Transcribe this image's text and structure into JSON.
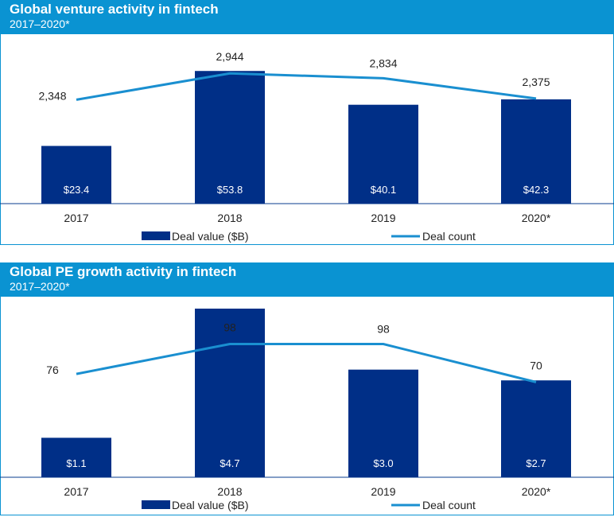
{
  "chart_data": [
    {
      "type": "bar+line",
      "title": "Global venture activity in fintech",
      "subtitle": "2017–2020*",
      "categories": [
        "2017",
        "2018",
        "2019",
        "2020*"
      ],
      "series": [
        {
          "name": "Deal value ($B)",
          "type": "bar",
          "values": [
            23.4,
            53.8,
            40.1,
            42.3
          ],
          "labels": [
            "$23.4",
            "$53.8",
            "$40.1",
            "$42.3"
          ]
        },
        {
          "name": "Deal count",
          "type": "line",
          "values": [
            2348,
            2944,
            2834,
            2375
          ],
          "labels": [
            "2,348",
            "2,944",
            "2,834",
            "2,375"
          ]
        }
      ],
      "bar_ylim": [
        0,
        60
      ],
      "line_ylim": [
        0,
        3200
      ],
      "legend": "bottom",
      "colors": {
        "bar": "#002f87",
        "line": "#1a8fd0",
        "header": "#0a93d2"
      }
    },
    {
      "type": "bar+line",
      "title": "Global PE growth activity in fintech",
      "subtitle": "2017–2020*",
      "categories": [
        "2017",
        "2018",
        "2019",
        "2020*"
      ],
      "series": [
        {
          "name": "Deal value ($B)",
          "type": "bar",
          "values": [
            1.1,
            4.7,
            3.0,
            2.7
          ],
          "labels": [
            "$1.1",
            "$4.7",
            "$3.0",
            "$2.7"
          ]
        },
        {
          "name": "Deal count",
          "type": "line",
          "values": [
            76,
            98,
            98,
            70
          ],
          "labels": [
            "76",
            "98",
            "98",
            "70"
          ]
        }
      ],
      "bar_ylim": [
        0,
        4.7
      ],
      "line_ylim": [
        0,
        110
      ],
      "legend": "bottom",
      "colors": {
        "bar": "#002f87",
        "line": "#1a8fd0",
        "header": "#0a93d2"
      }
    }
  ]
}
